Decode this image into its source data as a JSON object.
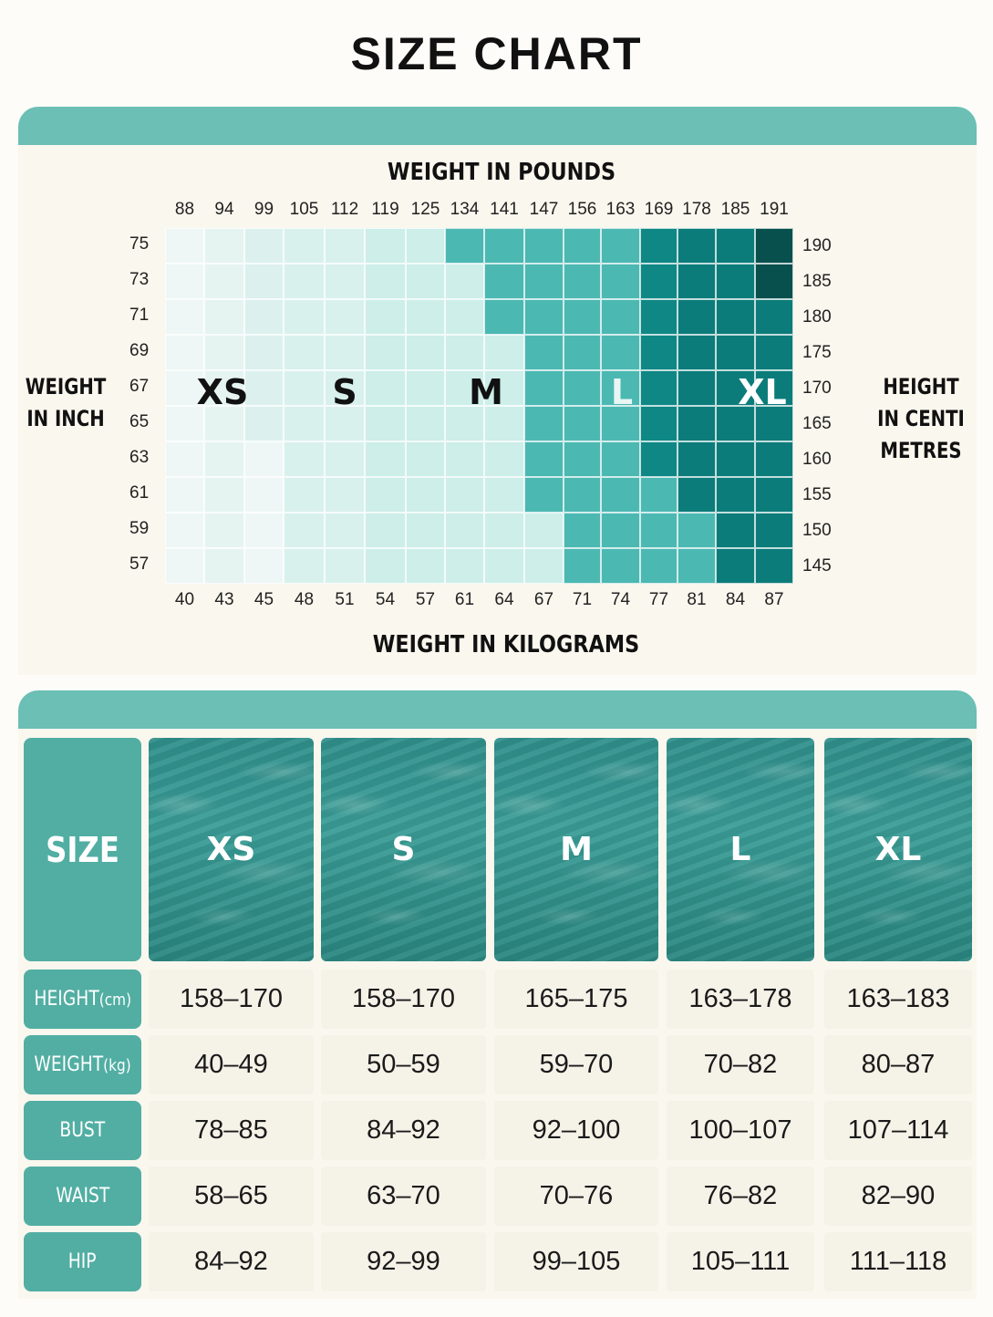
{
  "title": "SIZE CHART",
  "chart": {
    "top_axis_title": "WEIGHT IN POUNDS",
    "bottom_axis_title": "WEIGHT IN KILOGRAMS",
    "left_title_line1": "WEIGHT",
    "left_title_line2": "IN INCH",
    "right_title_line1": "HEIGHT",
    "right_title_line2": "IN CENTI",
    "right_title_line3": "METRES",
    "pounds": [
      "88",
      "94",
      "99",
      "105",
      "112",
      "119",
      "125",
      "134",
      "141",
      "147",
      "156",
      "163",
      "169",
      "178",
      "185",
      "191"
    ],
    "kilograms": [
      "40",
      "43",
      "45",
      "48",
      "51",
      "54",
      "57",
      "61",
      "64",
      "67",
      "71",
      "74",
      "77",
      "81",
      "84",
      "87"
    ],
    "inches": [
      "75",
      "73",
      "71",
      "69",
      "67",
      "65",
      "63",
      "61",
      "59",
      "57"
    ],
    "centimetres": [
      "190",
      "185",
      "180",
      "175",
      "170",
      "165",
      "160",
      "155",
      "150",
      "145"
    ],
    "zones": [
      "XS",
      "S",
      "M",
      "L",
      "XL"
    ],
    "colors": [
      "#eef7f5",
      "#dcf1ee",
      "#c0e9e3",
      "#4cb8b2",
      "#0f8785",
      "#07504e"
    ]
  },
  "table": {
    "header": "SIZE",
    "sizes": [
      "XS",
      "S",
      "M",
      "L",
      "XL"
    ],
    "rows": [
      {
        "label": "HEIGHT",
        "unit": "(cm)",
        "values": [
          "158–170",
          "158–170",
          "165–175",
          "163–178",
          "163–183"
        ]
      },
      {
        "label": "WEIGHT",
        "unit": "(kg)",
        "values": [
          "40–49",
          "50–59",
          "59–70",
          "70–82",
          "80–87"
        ]
      },
      {
        "label": "BUST",
        "unit": "",
        "values": [
          "78–85",
          "84–92",
          "92–100",
          "100–107",
          "107–114"
        ]
      },
      {
        "label": "WAIST",
        "unit": "",
        "values": [
          "58–65",
          "63–70",
          "70–76",
          "76–82",
          "82–90"
        ]
      },
      {
        "label": "HIP",
        "unit": "",
        "values": [
          "84–92",
          "92–99",
          "99–105",
          "105–111",
          "111–118"
        ]
      }
    ]
  }
}
